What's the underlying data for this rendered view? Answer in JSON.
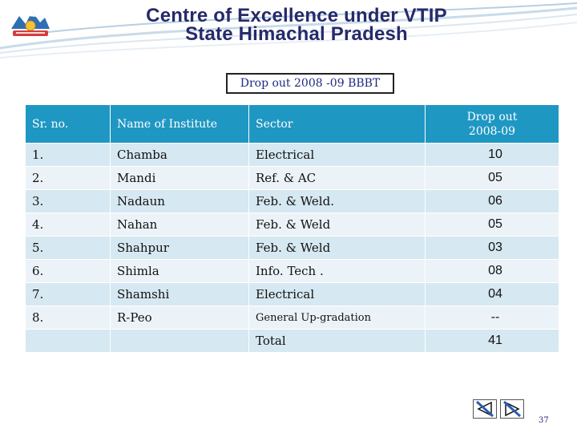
{
  "header": {
    "title_line1": "Centre of Excellence under VTIP",
    "title_line2": "State Himachal Pradesh"
  },
  "subtitle": "Drop  out 2008 -09 BBBT",
  "table": {
    "headers": {
      "sr": "Sr. no.",
      "name": "Name of Institute",
      "sector": "Sector",
      "drop_line1": "Drop out",
      "drop_line2": "2008-09"
    },
    "rows": [
      {
        "sr": "1.",
        "name": "Chamba",
        "sector": "Electrical",
        "value": "10"
      },
      {
        "sr": "2.",
        "name": "Mandi",
        "sector": "Ref. & AC",
        "value": "05"
      },
      {
        "sr": "3.",
        "name": "Nadaun",
        "sector": "Feb. & Weld.",
        "value": "06"
      },
      {
        "sr": "4.",
        "name": "Nahan",
        "sector": "Feb. & Weld",
        "value": "05"
      },
      {
        "sr": "5.",
        "name": "Shahpur",
        "sector": "Feb. & Weld",
        "value": "03"
      },
      {
        "sr": "6.",
        "name": "Shimla",
        "sector": "Info. Tech .",
        "value": "08"
      },
      {
        "sr": "7.",
        "name": "Shamshi",
        "sector": "Electrical",
        "value": "04"
      },
      {
        "sr": "8.",
        "name": "R-Peo",
        "sector": "General  Up-gradation",
        "value": "--"
      }
    ],
    "total_label": "Total",
    "total_value": "41"
  },
  "page_number": "37",
  "colors": {
    "header_bg": "#1f97c3",
    "row_odd": "#d6e8f1",
    "row_even": "#ecf3f8",
    "title": "#262a6a",
    "subtitle_text": "#1f2a80"
  },
  "icons": {
    "back": "prev-slide-icon",
    "forward": "next-slide-icon",
    "emblem": "state-emblem-icon"
  }
}
